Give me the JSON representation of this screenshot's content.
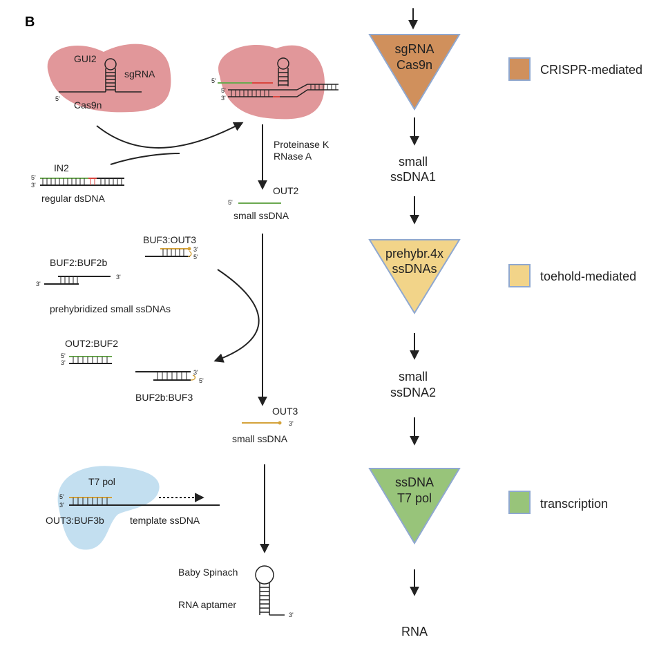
{
  "panel_letter": "B",
  "left": {
    "gui2": "GUI2",
    "sgrna": "sgRNA",
    "cas9n": "Cas9n",
    "five_prime": "5'",
    "three_prime": "3'",
    "in2": "IN2",
    "regular_dsdna": "regular dsDNA",
    "proteinase_k": "Proteinase K",
    "rnase_a": "RNase A",
    "out2": "OUT2",
    "small_ssdna": "small ssDNA",
    "buf3_out3": "BUF3:OUT3",
    "buf2_buf2b": "BUF2:BUF2b",
    "prehybridized": "prehybridized small ssDNAs",
    "out2_buf2": "OUT2:BUF2",
    "buf2b_buf3": "BUF2b:BUF3",
    "out3": "OUT3",
    "t7_pol": "T7 pol",
    "out3_buf3b": "OUT3:BUF3b",
    "template_ssdna": "template ssDNA",
    "baby_spinach": "Baby Spinach",
    "rna_aptamer": "RNA aptamer"
  },
  "flow": {
    "tri1": [
      "sgRNA",
      "Cas9n"
    ],
    "step1": [
      "small",
      "ssDNA1"
    ],
    "tri2": [
      "prehybr.4x",
      "ssDNAs"
    ],
    "step2": [
      "small",
      "ssDNA2"
    ],
    "tri3": [
      "ssDNA",
      "T7 pol"
    ],
    "output": "RNA"
  },
  "legend": [
    {
      "label": "CRISPR-mediated",
      "color": "#d0905c"
    },
    {
      "label": "toehold-mediated",
      "color": "#f2d489"
    },
    {
      "label": "transcription",
      "color": "#98c47a"
    }
  ],
  "colors": {
    "cas9": "#de8c8f",
    "t7pol": "#bcdcee",
    "green_strand": "#6aa84f",
    "orange_strand": "#d4a23a",
    "red_mismatch": "#d9453d",
    "tri_border": "#8fa8d0"
  }
}
